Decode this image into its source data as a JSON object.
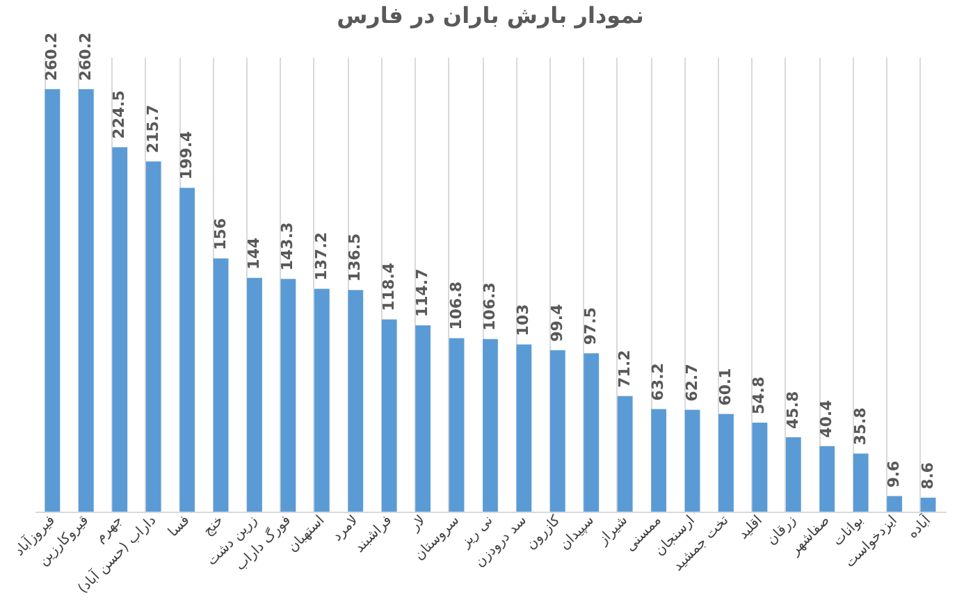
{
  "chart_data": {
    "type": "bar",
    "title": "نمودار بارش باران در فارس",
    "categories": [
      "فیروزآباد",
      "قیروکارزین",
      "جهرم",
      "داراب (حسن آباد)",
      "فسا",
      "خنج",
      "زرین دشت",
      "فورگ داراب",
      "استهبان",
      "لامرد",
      "فراشبند",
      "لار",
      "سروستان",
      "نی ریز",
      "سد درودزن",
      "کازرون",
      "سپیدان",
      "شیراز",
      "ممسنی",
      "ارسنجان",
      "تخت جمشید",
      "اقلید",
      "زرقان",
      "صفاشهر",
      "بوانات",
      "ایزدخواست",
      "آباده"
    ],
    "values": [
      260.2,
      260.2,
      224.5,
      215.7,
      199.4,
      156,
      144,
      143.3,
      137.2,
      136.5,
      118.4,
      114.7,
      106.8,
      106.3,
      103,
      99.4,
      97.5,
      71.2,
      63.2,
      62.7,
      60.1,
      54.8,
      45.8,
      40.4,
      35.8,
      9.6,
      8.6
    ],
    "color": "#5b9bd5",
    "data_labels": true,
    "grid": "x",
    "tick_labels": "x"
  }
}
